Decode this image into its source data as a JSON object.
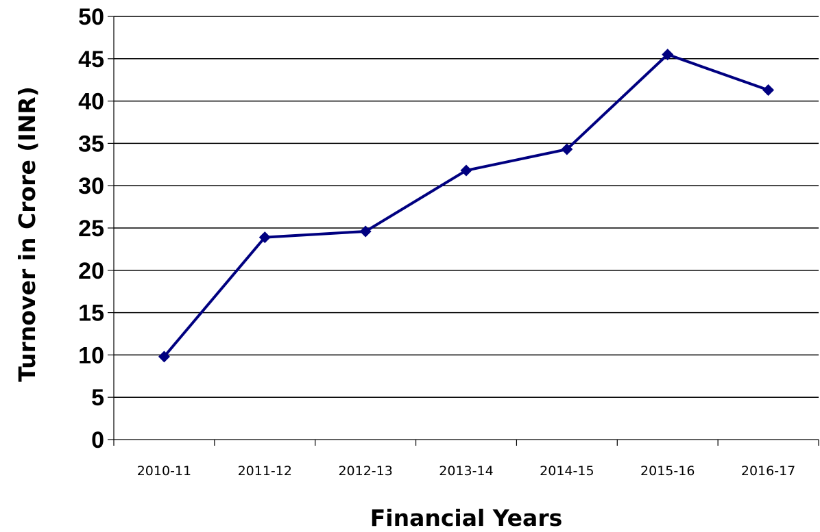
{
  "chart_data": {
    "type": "line",
    "title": "",
    "xlabel": "Financial Years",
    "ylabel": "Turnover in Crore (INR)",
    "categories": [
      "2010-11",
      "2011-12",
      "2012-13",
      "2013-14",
      "2014-15",
      "2015-16",
      "2016-17"
    ],
    "series": [
      {
        "values": [
          9.8,
          23.9,
          24.6,
          31.8,
          34.3,
          45.5,
          41.3
        ]
      }
    ],
    "ylim": [
      0,
      50
    ],
    "yticks": [
      "0",
      "5",
      "10",
      "15",
      "20",
      "25",
      "30",
      "35",
      "40",
      "45",
      "50"
    ],
    "grid": true,
    "legend": "none",
    "colors": {
      "line": "#000080",
      "marker": "#000080",
      "grid": "#000000"
    }
  }
}
